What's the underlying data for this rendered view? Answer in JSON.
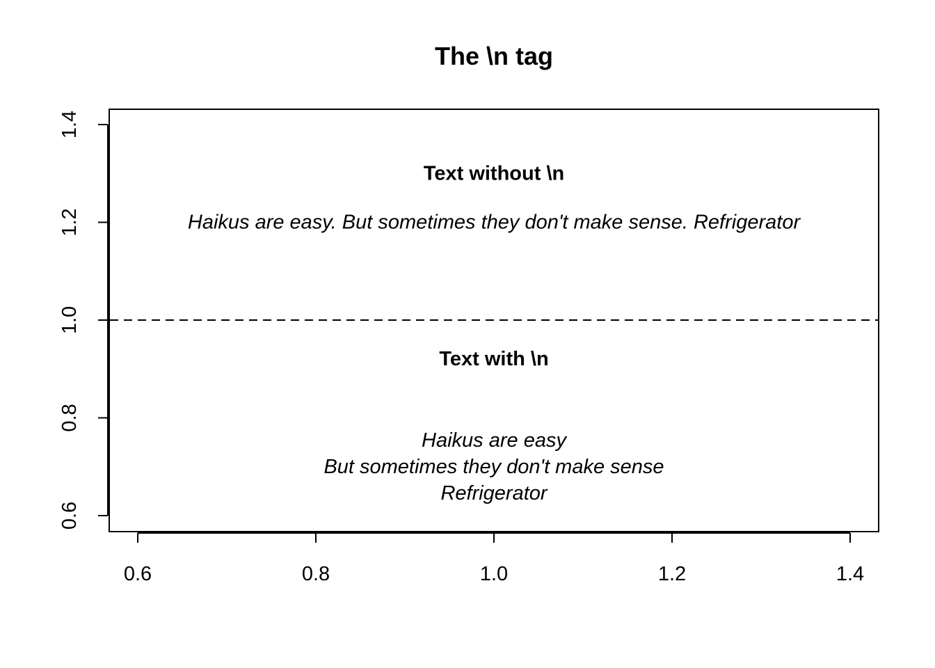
{
  "chart_data": {
    "type": "scatter",
    "title": "The \\n tag",
    "xlabel": "",
    "ylabel": "",
    "xlim": [
      0.6,
      1.4
    ],
    "ylim": [
      0.6,
      1.4
    ],
    "x_ticks": [
      "0.6",
      "0.8",
      "1.0",
      "1.2",
      "1.4"
    ],
    "y_ticks": [
      "0.6",
      "0.8",
      "1.0",
      "1.2",
      "1.4"
    ],
    "grid": false,
    "points": [],
    "hline": {
      "y": 1.0,
      "style": "dashed"
    },
    "annotations": [
      {
        "text": "Text without \\n",
        "x": 1.0,
        "y": 1.3,
        "style": "bold"
      },
      {
        "text": "Haikus are easy. But sometimes they don't make sense. Refrigerator",
        "x": 1.0,
        "y": 1.2,
        "style": "italic"
      },
      {
        "text": "Text with \\n",
        "x": 1.0,
        "y": 0.92,
        "style": "bold"
      },
      {
        "lines": [
          "Haikus are easy",
          "But sometimes they don't make sense",
          "Refrigerator"
        ],
        "x": 1.0,
        "y": 0.7,
        "style": "italic"
      }
    ]
  }
}
